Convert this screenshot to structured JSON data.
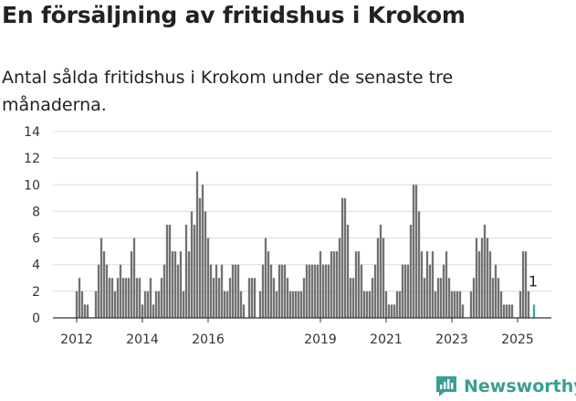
{
  "chart_data": {
    "type": "bar",
    "title": "En försäljning av fritidshus i Krokom",
    "subtitle": "Antal sålda fritidshus i Krokom under de senaste tre månaderna.",
    "xlabel": "",
    "ylabel": "",
    "ylim": [
      0,
      14
    ],
    "yticks": [
      0,
      2,
      4,
      6,
      8,
      10,
      12,
      14
    ],
    "xticks": [
      "2012",
      "2014",
      "2016",
      "2019",
      "2021",
      "2023",
      "2025"
    ],
    "grid": true,
    "highlight_color": "#3aa8a0",
    "bar_color": "#727272",
    "last_value_label": "1",
    "values": [
      2,
      3,
      2,
      1,
      1,
      0,
      0,
      2,
      4,
      6,
      5,
      4,
      3,
      3,
      2,
      3,
      4,
      3,
      3,
      3,
      5,
      6,
      3,
      3,
      1,
      2,
      2,
      3,
      1,
      2,
      2,
      3,
      4,
      7,
      7,
      5,
      5,
      4,
      5,
      2,
      7,
      5,
      8,
      7,
      11,
      9,
      10,
      8,
      6,
      4,
      3,
      4,
      3,
      4,
      2,
      2,
      3,
      4,
      4,
      4,
      2,
      1,
      0,
      3,
      3,
      3,
      0,
      2,
      4,
      6,
      5,
      4,
      3,
      2,
      4,
      4,
      4,
      3,
      2,
      2,
      2,
      2,
      2,
      3,
      4,
      4,
      4,
      4,
      4,
      5,
      4,
      4,
      4,
      5,
      5,
      5,
      6,
      9,
      9,
      7,
      3,
      3,
      5,
      5,
      4,
      2,
      2,
      2,
      3,
      4,
      6,
      7,
      6,
      2,
      1,
      1,
      1,
      2,
      2,
      4,
      4,
      4,
      7,
      10,
      10,
      8,
      5,
      3,
      5,
      4,
      5,
      2,
      3,
      3,
      4,
      5,
      3,
      2,
      2,
      2,
      2,
      1,
      0,
      0,
      2,
      3,
      6,
      5,
      6,
      7,
      6,
      5,
      3,
      4,
      3,
      2,
      1,
      1,
      1,
      1,
      0,
      0,
      2,
      5,
      5,
      2,
      0,
      1
    ]
  },
  "brand": {
    "name": "Newsworthy",
    "color": "#3a9e93"
  }
}
